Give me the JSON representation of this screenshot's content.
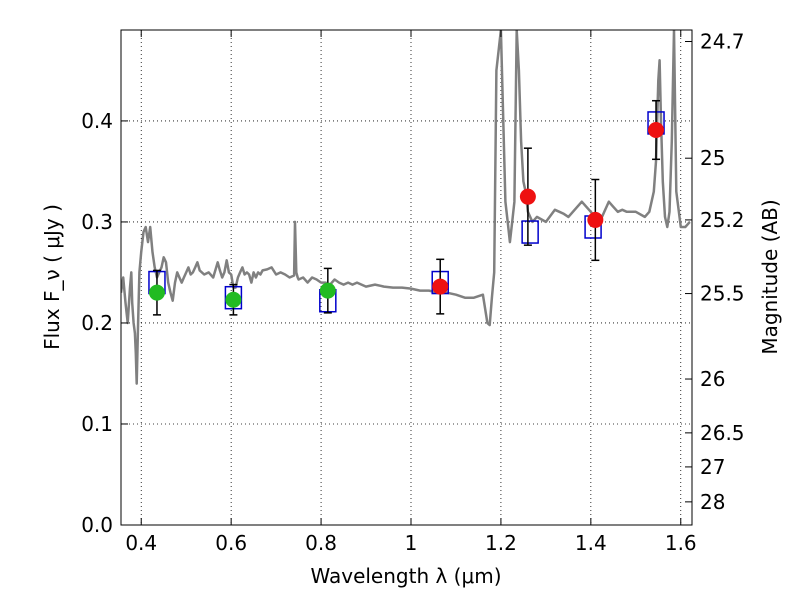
{
  "chart_data": {
    "type": "scatter",
    "title": "",
    "xlabel": "Wavelength  λ (μm)",
    "ylabel": "Flux  F_ν  ( μJy )",
    "ylabel_right": "Magnitude (AB)",
    "xlim": [
      0.355,
      1.625
    ],
    "ylim": [
      0.0,
      0.49
    ],
    "grid": true,
    "legend": false,
    "x_ticks": [
      0.4,
      0.6,
      0.8,
      1.0,
      1.2,
      1.4,
      1.6
    ],
    "x_tick_labels": [
      "0.4",
      "0.6",
      "0.8",
      "1",
      "1.2",
      "1.4",
      "1.6"
    ],
    "y_ticks": [
      0.0,
      0.1,
      0.2,
      0.3,
      0.4
    ],
    "y_tick_labels": [
      "0.0",
      "0.1",
      "0.2",
      "0.3",
      "0.4"
    ],
    "right_axis": {
      "tick_labels": [
        "24.7",
        "25",
        "25.2",
        "25.5",
        "26",
        "26.5",
        "27",
        "28"
      ],
      "tick_flux_values": [
        0.4786,
        0.3631,
        0.302,
        0.2291,
        0.1445,
        0.0912,
        0.0575,
        0.0229
      ]
    },
    "colors": {
      "template": "#808080",
      "model_box": "#0000cc",
      "optical_points": "#22bb22",
      "nir_points": "#ee1111",
      "error_bars": "#000000",
      "grid": "#000000"
    },
    "series": [
      {
        "marker": "line",
        "x": [
          0.355,
          0.36,
          0.365,
          0.37,
          0.375,
          0.378,
          0.38,
          0.383,
          0.386,
          0.388,
          0.39,
          0.393,
          0.396,
          0.4,
          0.405,
          0.41,
          0.415,
          0.42,
          0.425,
          0.43,
          0.435,
          0.44,
          0.445,
          0.45,
          0.455,
          0.46,
          0.465,
          0.47,
          0.475,
          0.48,
          0.485,
          0.49,
          0.495,
          0.5,
          0.505,
          0.51,
          0.515,
          0.52,
          0.525,
          0.53,
          0.54,
          0.55,
          0.56,
          0.57,
          0.575,
          0.58,
          0.585,
          0.59,
          0.595,
          0.6,
          0.605,
          0.61,
          0.615,
          0.62,
          0.625,
          0.63,
          0.635,
          0.64,
          0.645,
          0.65,
          0.655,
          0.66,
          0.665,
          0.67,
          0.68,
          0.69,
          0.7,
          0.71,
          0.72,
          0.73,
          0.74,
          0.742,
          0.745,
          0.748,
          0.75,
          0.76,
          0.77,
          0.78,
          0.79,
          0.8,
          0.81,
          0.82,
          0.83,
          0.84,
          0.85,
          0.86,
          0.87,
          0.88,
          0.9,
          0.92,
          0.94,
          0.96,
          0.98,
          1.0,
          1.02,
          1.04,
          1.06,
          1.08,
          1.1,
          1.12,
          1.14,
          1.16,
          1.17,
          1.175,
          1.18,
          1.185,
          1.19,
          1.2,
          1.21,
          1.215,
          1.22,
          1.225,
          1.23,
          1.235,
          1.24,
          1.245,
          1.25,
          1.255,
          1.26,
          1.27,
          1.28,
          1.3,
          1.32,
          1.33,
          1.34,
          1.35,
          1.36,
          1.38,
          1.4,
          1.42,
          1.43,
          1.44,
          1.45,
          1.46,
          1.47,
          1.48,
          1.5,
          1.52,
          1.53,
          1.54,
          1.545,
          1.55,
          1.553,
          1.556,
          1.56,
          1.565,
          1.57,
          1.575,
          1.58,
          1.585,
          1.59,
          1.6,
          1.61,
          1.62
        ],
        "y": [
          0.23,
          0.245,
          0.22,
          0.2,
          0.235,
          0.25,
          0.22,
          0.2,
          0.19,
          0.17,
          0.14,
          0.2,
          0.25,
          0.27,
          0.29,
          0.295,
          0.28,
          0.295,
          0.27,
          0.255,
          0.245,
          0.25,
          0.255,
          0.265,
          0.26,
          0.24,
          0.23,
          0.222,
          0.24,
          0.25,
          0.245,
          0.24,
          0.245,
          0.25,
          0.255,
          0.248,
          0.25,
          0.255,
          0.26,
          0.252,
          0.248,
          0.25,
          0.245,
          0.26,
          0.252,
          0.245,
          0.25,
          0.262,
          0.25,
          0.248,
          0.235,
          0.235,
          0.245,
          0.25,
          0.255,
          0.248,
          0.25,
          0.248,
          0.24,
          0.25,
          0.245,
          0.25,
          0.248,
          0.252,
          0.253,
          0.255,
          0.248,
          0.25,
          0.248,
          0.245,
          0.247,
          0.3,
          0.25,
          0.245,
          0.243,
          0.245,
          0.24,
          0.245,
          0.243,
          0.24,
          0.24,
          0.238,
          0.243,
          0.24,
          0.238,
          0.24,
          0.238,
          0.24,
          0.236,
          0.238,
          0.236,
          0.235,
          0.235,
          0.234,
          0.232,
          0.232,
          0.23,
          0.23,
          0.228,
          0.225,
          0.225,
          0.228,
          0.2,
          0.198,
          0.225,
          0.25,
          0.45,
          0.49,
          0.32,
          0.3,
          0.28,
          0.3,
          0.32,
          0.49,
          0.45,
          0.38,
          0.34,
          0.33,
          0.31,
          0.3,
          0.305,
          0.3,
          0.312,
          0.31,
          0.308,
          0.305,
          0.31,
          0.32,
          0.31,
          0.3,
          0.31,
          0.32,
          0.315,
          0.31,
          0.312,
          0.31,
          0.31,
          0.305,
          0.31,
          0.33,
          0.36,
          0.44,
          0.46,
          0.4,
          0.34,
          0.305,
          0.295,
          0.31,
          0.38,
          0.49,
          0.33,
          0.295,
          0.295,
          0.3
        ]
      },
      {
        "marker": "square",
        "x": [
          0.435,
          0.605,
          0.815,
          1.065,
          1.265,
          1.405,
          1.545
        ],
        "y": [
          0.24,
          0.225,
          0.222,
          0.24,
          0.29,
          0.295,
          0.398
        ]
      },
      {
        "marker": "circle",
        "x": [
          0.435,
          0.605,
          0.815
        ],
        "y": [
          0.23,
          0.223,
          0.232
        ],
        "yerr": [
          0.022,
          0.015,
          0.022
        ]
      },
      {
        "marker": "circle",
        "x": [
          1.065,
          1.26,
          1.41,
          1.545
        ],
        "y": [
          0.236,
          0.325,
          0.302,
          0.391
        ],
        "yerr": [
          0.027,
          0.048,
          0.04,
          0.029
        ]
      }
    ]
  }
}
